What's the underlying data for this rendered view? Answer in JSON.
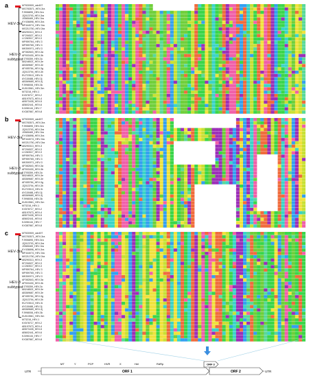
{
  "panels": [
    {
      "label": "a",
      "group_top": "HEV-3ra",
      "group_mid": "HEV-3\nsubtypes"
    },
    {
      "label": "b",
      "group_top": "HEV-3ra",
      "group_mid": "HEV-3\nsubtypes"
    },
    {
      "label": "c",
      "group_top": "HEV-3ra",
      "group_mid": "HEV-3\nsubtypes"
    }
  ],
  "sequences": [
    "MT920909_rab497",
    "MG783571_HEV-3ra",
    "FJ906895_HEV-3ra",
    "JQ013793_HEV-3ra",
    "JX565469_HEV-3ra",
    "KY436898_HEV-3ra",
    "MF444074_HEV-3ra",
    "MG211750_HEV-3ra",
    "AB290313_HEV-3",
    "KF294527_HEV-3",
    "LC260517_HEV-3",
    "MF959764_HEV-3",
    "MF959765_HEV-3",
    "MK390971_HEV-3",
    "AF082843_HEV-3a",
    "AP003430_HEV-3b",
    "FJ705359_HEV-3c",
    "AB248521_HEV-3e",
    "AB369687_HEV-3e",
    "AF455784_HEV-3g",
    "JQ013794_HEV-3h",
    "EU723513_HEV-3i",
    "AY115488_HEV-3j",
    "AB369689_HEV-3j",
    "FJ998008_HEV-3k",
    "KU513561_HEV-3m",
    "M73218_HEV-1",
    "KX578717_HEV-2",
    "AB197673_HEV-4",
    "AB573435_HEV-5",
    "AB602441_HEV-6",
    "KJ496144_HEV-7",
    "KX387867_HEV-8"
  ],
  "genome": {
    "utr_left": "UTR",
    "utr_right": "UTR",
    "domains": [
      "MT",
      "Y",
      "PCP",
      "HVR",
      "X",
      "Hel",
      "RdRp"
    ],
    "orf1": "ORF 1",
    "orf2": "ORF 2",
    "orf3": "ORF 3"
  },
  "colors": {
    "A": "#f06b3c",
    "C": "#34a0f0",
    "G": "#9c2fb8",
    "T": "#3ad64a",
    "U": "#f0e23c",
    "K": "#f05fa8",
    "R": "#58d89a",
    "V": "#6fcf3a",
    "L": "#3bd4c8",
    "S": "#c8e034",
    "gap": "#ffffff",
    "arrow_red": "#e0141e",
    "arrow_blue": "#3a8ee0"
  }
}
